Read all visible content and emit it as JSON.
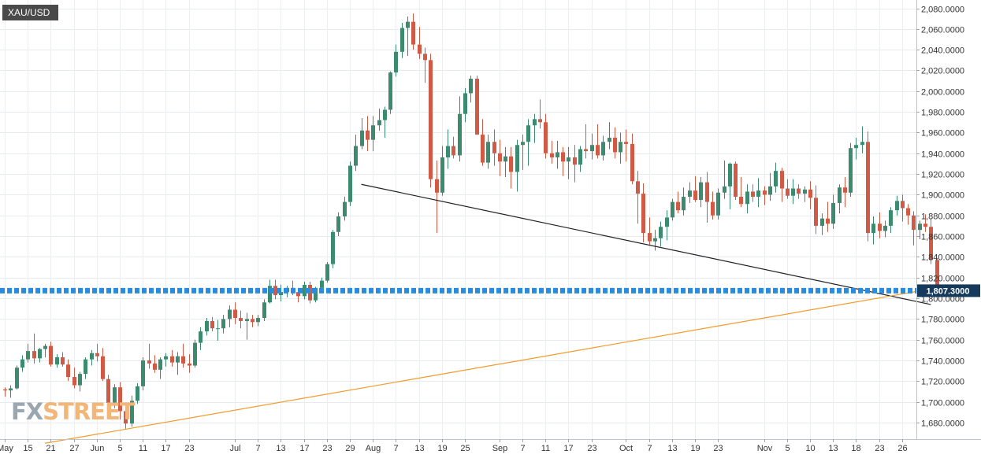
{
  "instrument": "XAU/USD",
  "logo": {
    "part1": "FX",
    "part2": "STREET"
  },
  "chart_data": {
    "type": "candlestick",
    "ylim": [
      1664,
      2088
    ],
    "y_ticks": [
      2080,
      2060,
      2040,
      2020,
      2000,
      1980,
      1960,
      1940,
      1920,
      1900,
      1880,
      1860,
      1840,
      1820,
      1800,
      1780,
      1760,
      1740,
      1720,
      1700,
      1680
    ],
    "y_tick_labels": [
      "2,080.0000",
      "2,060.0000",
      "2,040.0000",
      "2,020.0000",
      "2,000.0000",
      "1,980.0000",
      "1,960.0000",
      "1,940.0000",
      "1,920.0000",
      "1,900.0000",
      "1,880.0000",
      "1,860.0000",
      "1,840.0000",
      "1,820.0000",
      "1,800.0000",
      "1,780.0000",
      "1,760.0000",
      "1,740.0000",
      "1,720.0000",
      "1,700.0000",
      "1,680.0000"
    ],
    "x_tick_labels": [
      "May",
      "15",
      "21",
      "27",
      "Jun",
      "5",
      "11",
      "17",
      "23",
      "Jul",
      "7",
      "13",
      "17",
      "23",
      "29",
      "Aug",
      "7",
      "13",
      "19",
      "25",
      "Sep",
      "7",
      "11",
      "17",
      "23",
      "Oct",
      "7",
      "13",
      "19",
      "23",
      "Nov",
      "5",
      "10",
      "13",
      "18",
      "23",
      "26"
    ],
    "x_tick_index": [
      0,
      4,
      8,
      12,
      16,
      20,
      24,
      28,
      32,
      40,
      44,
      48,
      52,
      56,
      60,
      64,
      68,
      72,
      76,
      80,
      86,
      90,
      94,
      98,
      102,
      108,
      112,
      116,
      120,
      124,
      132,
      136,
      140,
      144,
      148,
      152,
      156
    ],
    "current_price": 1807.3,
    "current_price_label": "1,807.3000",
    "colors": {
      "up": "#3d8b6e",
      "down": "#cf5b47",
      "price_line": "#2a8ce0",
      "price_box": "#163a5c"
    },
    "candles": [
      [
        1712,
        1714,
        1705,
        1711
      ],
      [
        1711,
        1716,
        1704,
        1713
      ],
      [
        1713,
        1735,
        1712,
        1733
      ],
      [
        1733,
        1745,
        1729,
        1741
      ],
      [
        1741,
        1756,
        1738,
        1749
      ],
      [
        1749,
        1766,
        1737,
        1742
      ],
      [
        1742,
        1752,
        1738,
        1751
      ],
      [
        1751,
        1756,
        1743,
        1754
      ],
      [
        1754,
        1758,
        1734,
        1736
      ],
      [
        1736,
        1746,
        1733,
        1743
      ],
      [
        1743,
        1748,
        1734,
        1736
      ],
      [
        1736,
        1741,
        1720,
        1724
      ],
      [
        1724,
        1733,
        1713,
        1716
      ],
      [
        1716,
        1729,
        1710,
        1727
      ],
      [
        1727,
        1743,
        1722,
        1741
      ],
      [
        1741,
        1750,
        1735,
        1747
      ],
      [
        1747,
        1756,
        1739,
        1744
      ],
      [
        1744,
        1752,
        1720,
        1722
      ],
      [
        1722,
        1726,
        1694,
        1699
      ],
      [
        1699,
        1717,
        1694,
        1714
      ],
      [
        1714,
        1719,
        1683,
        1691
      ],
      [
        1691,
        1696,
        1674,
        1679
      ],
      [
        1679,
        1706,
        1676,
        1701
      ],
      [
        1701,
        1718,
        1698,
        1715
      ],
      [
        1715,
        1743,
        1711,
        1740
      ],
      [
        1740,
        1756,
        1732,
        1737
      ],
      [
        1737,
        1745,
        1728,
        1731
      ],
      [
        1731,
        1743,
        1722,
        1741
      ],
      [
        1741,
        1747,
        1734,
        1744
      ],
      [
        1744,
        1750,
        1734,
        1738
      ],
      [
        1738,
        1748,
        1726,
        1744
      ],
      [
        1744,
        1756,
        1733,
        1737
      ],
      [
        1737,
        1746,
        1728,
        1735
      ],
      [
        1735,
        1760,
        1733,
        1757
      ],
      [
        1757,
        1772,
        1750,
        1768
      ],
      [
        1768,
        1781,
        1764,
        1778
      ],
      [
        1778,
        1782,
        1768,
        1771
      ],
      [
        1771,
        1779,
        1759,
        1771
      ],
      [
        1771,
        1784,
        1766,
        1780
      ],
      [
        1780,
        1793,
        1772,
        1789
      ],
      [
        1789,
        1796,
        1775,
        1781
      ],
      [
        1781,
        1788,
        1771,
        1778
      ],
      [
        1778,
        1786,
        1760,
        1780
      ],
      [
        1780,
        1784,
        1772,
        1777
      ],
      [
        1777,
        1784,
        1773,
        1781
      ],
      [
        1781,
        1799,
        1778,
        1796
      ],
      [
        1796,
        1818,
        1795,
        1812
      ],
      [
        1812,
        1818,
        1799,
        1803
      ],
      [
        1803,
        1813,
        1797,
        1806
      ],
      [
        1806,
        1812,
        1801,
        1810
      ],
      [
        1810,
        1817,
        1803,
        1806
      ],
      [
        1806,
        1808,
        1796,
        1802
      ],
      [
        1802,
        1816,
        1799,
        1813
      ],
      [
        1813,
        1816,
        1795,
        1798
      ],
      [
        1798,
        1811,
        1796,
        1810
      ],
      [
        1810,
        1820,
        1808,
        1817
      ],
      [
        1817,
        1835,
        1815,
        1833
      ],
      [
        1833,
        1866,
        1829,
        1864
      ],
      [
        1864,
        1883,
        1860,
        1879
      ],
      [
        1879,
        1898,
        1875,
        1893
      ],
      [
        1893,
        1932,
        1889,
        1928
      ],
      [
        1928,
        1958,
        1923,
        1947
      ],
      [
        1947,
        1974,
        1944,
        1962
      ],
      [
        1962,
        1976,
        1942,
        1953
      ],
      [
        1953,
        1976,
        1942,
        1967
      ],
      [
        1967,
        1983,
        1962,
        1972
      ],
      [
        1972,
        1985,
        1955,
        1982
      ],
      [
        1982,
        2019,
        1978,
        2018
      ],
      [
        2018,
        2045,
        2014,
        2038
      ],
      [
        2038,
        2066,
        2032,
        2061
      ],
      [
        2061,
        2072,
        2034,
        2067
      ],
      [
        2067,
        2075,
        2040,
        2045
      ],
      [
        2045,
        2062,
        2031,
        2036
      ],
      [
        2036,
        2042,
        2008,
        2030
      ],
      [
        2030,
        2036,
        1907,
        1915
      ],
      [
        1915,
        1933,
        1863,
        1902
      ],
      [
        1902,
        1947,
        1899,
        1936
      ],
      [
        1936,
        1963,
        1925,
        1947
      ],
      [
        1947,
        1956,
        1935,
        1938
      ],
      [
        1938,
        1995,
        1932,
        1978
      ],
      [
        1978,
        2003,
        1970,
        1998
      ],
      [
        1998,
        2015,
        1989,
        2012
      ],
      [
        2012,
        2015,
        1960,
        1958
      ],
      [
        1958,
        1973,
        1928,
        1931
      ],
      [
        1931,
        1958,
        1925,
        1951
      ],
      [
        1951,
        1963,
        1928,
        1940
      ],
      [
        1940,
        1953,
        1918,
        1932
      ],
      [
        1932,
        1946,
        1917,
        1937
      ],
      [
        1937,
        1946,
        1906,
        1922
      ],
      [
        1922,
        1953,
        1903,
        1948
      ],
      [
        1948,
        1958,
        1924,
        1951
      ],
      [
        1951,
        1973,
        1928,
        1967
      ],
      [
        1967,
        1978,
        1950,
        1973
      ],
      [
        1973,
        1992,
        1964,
        1970
      ],
      [
        1970,
        1978,
        1935,
        1940
      ],
      [
        1940,
        1952,
        1930,
        1936
      ],
      [
        1936,
        1952,
        1925,
        1941
      ],
      [
        1941,
        1946,
        1918,
        1932
      ],
      [
        1932,
        1946,
        1915,
        1936
      ],
      [
        1936,
        1948,
        1912,
        1929
      ],
      [
        1929,
        1947,
        1922,
        1944
      ],
      [
        1944,
        1968,
        1935,
        1942
      ],
      [
        1942,
        1959,
        1934,
        1948
      ],
      [
        1948,
        1968,
        1935,
        1938
      ],
      [
        1938,
        1957,
        1933,
        1951
      ],
      [
        1951,
        1970,
        1944,
        1955
      ],
      [
        1955,
        1965,
        1935,
        1941
      ],
      [
        1941,
        1960,
        1930,
        1951
      ],
      [
        1951,
        1963,
        1932,
        1949
      ],
      [
        1949,
        1959,
        1910,
        1913
      ],
      [
        1913,
        1923,
        1872,
        1901
      ],
      [
        1901,
        1911,
        1854,
        1863
      ],
      [
        1863,
        1878,
        1851,
        1855
      ],
      [
        1855,
        1866,
        1846,
        1858
      ],
      [
        1858,
        1874,
        1850,
        1869
      ],
      [
        1869,
        1885,
        1856,
        1878
      ],
      [
        1878,
        1896,
        1875,
        1893
      ],
      [
        1893,
        1903,
        1882,
        1885
      ],
      [
        1885,
        1907,
        1880,
        1898
      ],
      [
        1898,
        1912,
        1892,
        1904
      ],
      [
        1904,
        1918,
        1893,
        1895
      ],
      [
        1895,
        1917,
        1888,
        1912
      ],
      [
        1912,
        1922,
        1873,
        1893
      ],
      [
        1893,
        1903,
        1876,
        1880
      ],
      [
        1880,
        1906,
        1876,
        1902
      ],
      [
        1902,
        1933,
        1896,
        1908
      ],
      [
        1908,
        1931,
        1886,
        1930
      ],
      [
        1930,
        1932,
        1895,
        1898
      ],
      [
        1898,
        1917,
        1888,
        1891
      ],
      [
        1891,
        1910,
        1882,
        1903
      ],
      [
        1903,
        1910,
        1893,
        1898
      ],
      [
        1898,
        1916,
        1888,
        1904
      ],
      [
        1904,
        1908,
        1890,
        1900
      ],
      [
        1900,
        1921,
        1894,
        1908
      ],
      [
        1908,
        1931,
        1902,
        1923
      ],
      [
        1923,
        1926,
        1893,
        1906
      ],
      [
        1906,
        1915,
        1896,
        1899
      ],
      [
        1899,
        1915,
        1891,
        1906
      ],
      [
        1906,
        1910,
        1896,
        1901
      ],
      [
        1901,
        1908,
        1893,
        1905
      ],
      [
        1905,
        1913,
        1886,
        1897
      ],
      [
        1897,
        1909,
        1862,
        1870
      ],
      [
        1870,
        1882,
        1861,
        1877
      ],
      [
        1877,
        1893,
        1864,
        1872
      ],
      [
        1872,
        1900,
        1867,
        1892
      ],
      [
        1892,
        1910,
        1882,
        1907
      ],
      [
        1907,
        1917,
        1888,
        1902
      ],
      [
        1902,
        1950,
        1898,
        1945
      ],
      [
        1945,
        1955,
        1934,
        1948
      ],
      [
        1948,
        1966,
        1940,
        1951
      ],
      [
        1951,
        1961,
        1855,
        1863
      ],
      [
        1863,
        1879,
        1852,
        1872
      ],
      [
        1872,
        1883,
        1858,
        1865
      ],
      [
        1865,
        1875,
        1859,
        1870
      ],
      [
        1870,
        1888,
        1863,
        1885
      ],
      [
        1885,
        1899,
        1880,
        1894
      ],
      [
        1894,
        1900,
        1874,
        1887
      ],
      [
        1887,
        1891,
        1871,
        1880
      ],
      [
        1880,
        1884,
        1851,
        1866
      ],
      [
        1866,
        1875,
        1857,
        1872
      ],
      [
        1872,
        1881,
        1864,
        1869
      ],
      [
        1869,
        1877,
        1833,
        1837
      ],
      [
        1837,
        1838,
        1804,
        1807
      ]
    ],
    "lines": [
      {
        "name": "descending",
        "color": "#222222",
        "from": [
          62,
          1910
        ],
        "to": [
          161,
          1794
        ]
      },
      {
        "name": "ascending",
        "color": "#f39a2a",
        "from": [
          7,
          1660
        ],
        "to": [
          161,
          1809
        ]
      }
    ]
  }
}
